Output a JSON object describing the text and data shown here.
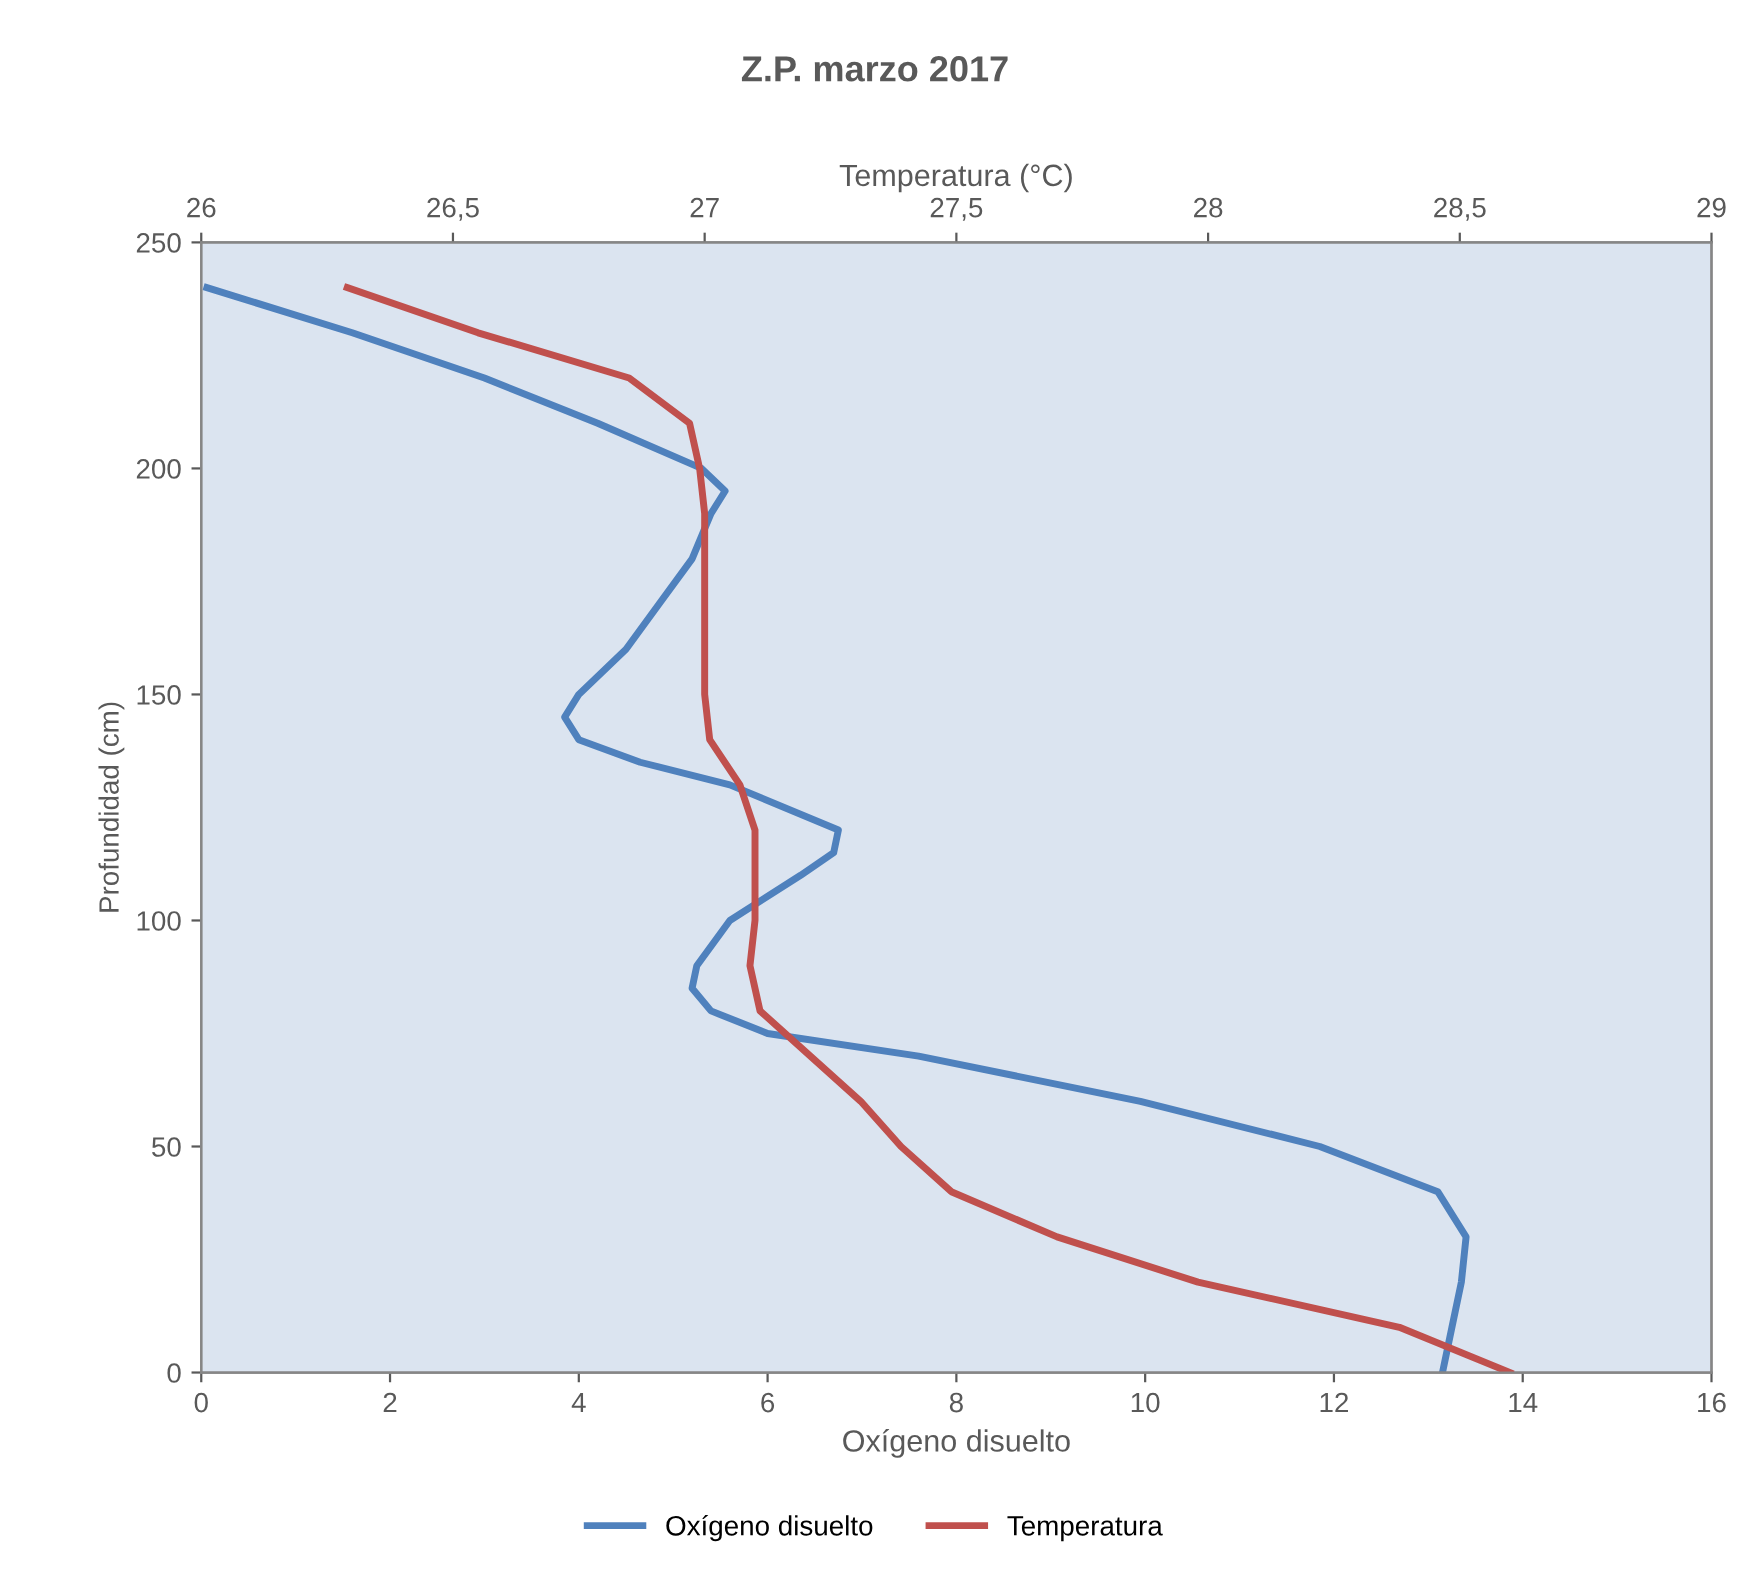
{
  "chart_data": {
    "type": "line",
    "title": "Z.P. marzo 2017",
    "xlabel": "Oxígeno disuelto",
    "x2label": "Temperatura (°C)",
    "ylabel": "Profundidad (cm)",
    "xlim": [
      0,
      16
    ],
    "xticks": [
      0,
      2,
      4,
      6,
      8,
      10,
      12,
      14,
      16
    ],
    "x2lim": [
      26,
      29
    ],
    "x2ticks": [
      26,
      {
        "value": 26.5,
        "label": "26,5"
      },
      27,
      {
        "value": 27.5,
        "label": "27,5"
      },
      28,
      {
        "value": 28.5,
        "label": "28,5"
      },
      29
    ],
    "ylim": [
      0,
      250
    ],
    "yticks": [
      0,
      50,
      100,
      150,
      200,
      250
    ],
    "grid": false,
    "legend": "bottom",
    "marker": "none",
    "line_style": "solid",
    "series": [
      {
        "name": "Oxígeno disuelto",
        "color": "#4f81bd",
        "x": [
          0.06,
          1.6,
          3.0,
          4.2,
          5.3,
          5.55,
          5.4,
          5.2,
          4.85,
          4.5,
          4.0,
          3.85,
          4.0,
          4.65,
          5.6,
          6.75,
          6.7,
          6.35,
          5.6,
          5.25,
          5.2,
          5.4,
          6.0,
          7.6,
          9.95,
          11.85,
          13.1,
          13.4,
          13.35,
          13.25,
          13.15
        ],
        "values": [
          240,
          230,
          220,
          210,
          200,
          195,
          190,
          180,
          170,
          160,
          150,
          145,
          140,
          135,
          130,
          120,
          115,
          110,
          100,
          90,
          85,
          80,
          75,
          70,
          60,
          50,
          40,
          30,
          20,
          10,
          0
        ]
      },
      {
        "name": "Temperatura",
        "color": "#c0504d",
        "axis": "x2",
        "x": [
          26.29,
          26.55,
          26.85,
          26.97,
          26.99,
          27.0,
          27.0,
          27.0,
          27.0,
          27.0,
          27.01,
          27.07,
          27.1,
          27.1,
          27.1,
          27.09,
          27.11,
          27.21,
          27.31,
          27.39,
          27.49,
          27.7,
          27.98,
          28.38,
          28.6
        ],
        "values": [
          240,
          230,
          220,
          210,
          200,
          190,
          180,
          170,
          160,
          150,
          140,
          130,
          120,
          110,
          100,
          90,
          80,
          70,
          60,
          50,
          40,
          30,
          20,
          10,
          0
        ]
      }
    ]
  }
}
